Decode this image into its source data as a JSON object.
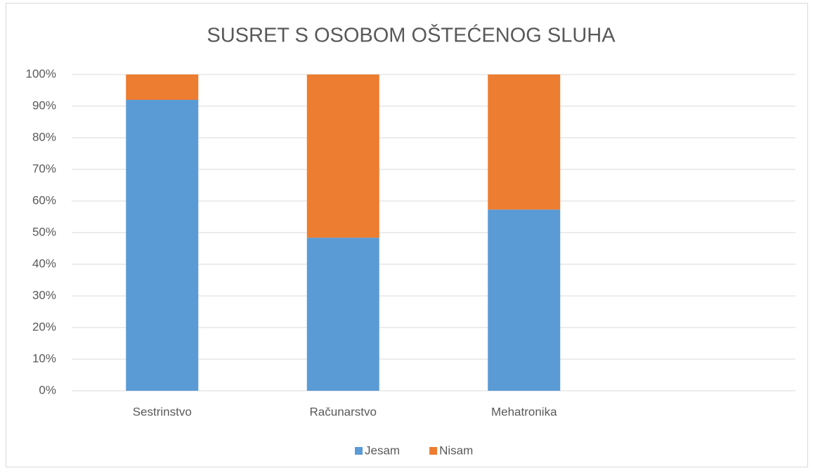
{
  "chart_data": {
    "type": "stacked_bar",
    "title": "SUSRET S OSOBOM OŠTEĆENOG SLUHA",
    "categories": [
      "Sestrinstvo",
      "Računarstvo",
      "Mehatronika",
      null
    ],
    "series": [
      {
        "name": "Jesam",
        "color": "#5b9bd5",
        "values": [
          92,
          48.4,
          57.3,
          null
        ]
      },
      {
        "name": "Nisam",
        "color": "#ed7d31",
        "values": [
          8,
          51.6,
          42.7,
          null
        ]
      }
    ],
    "ylim": [
      0,
      100
    ],
    "yticks": [
      {
        "value": 0,
        "label": "0%"
      },
      {
        "value": 10,
        "label": "10%"
      },
      {
        "value": 20,
        "label": "20%"
      },
      {
        "value": 30,
        "label": "30%"
      },
      {
        "value": 40,
        "label": "40%"
      },
      {
        "value": 50,
        "label": "50%"
      },
      {
        "value": 60,
        "label": "60%"
      },
      {
        "value": 70,
        "label": "70%"
      },
      {
        "value": 80,
        "label": "80%"
      },
      {
        "value": 90,
        "label": "90%"
      },
      {
        "value": 100,
        "label": "100%"
      }
    ],
    "grid": true,
    "legend": "bottom"
  }
}
